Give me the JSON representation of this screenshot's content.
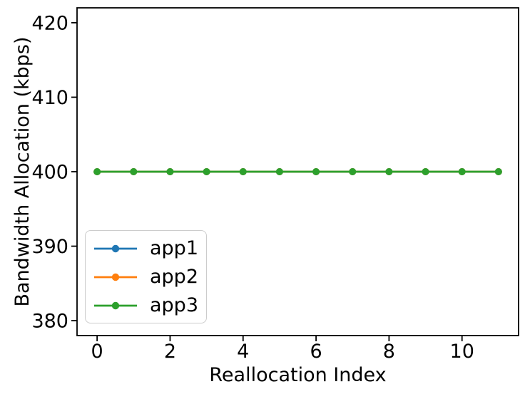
{
  "chart_data": {
    "type": "line",
    "title": "",
    "xlabel": "Reallocation Index",
    "ylabel": "Bandwidth Allocation (kbps)",
    "x": [
      0,
      1,
      2,
      3,
      4,
      5,
      6,
      7,
      8,
      9,
      10,
      11
    ],
    "series": [
      {
        "name": "app1",
        "color": "#1f77b4",
        "marker": "o",
        "values": [
          400,
          400,
          400,
          400,
          400,
          400,
          400,
          400,
          400,
          400,
          400,
          400
        ]
      },
      {
        "name": "app2",
        "color": "#ff7f0e",
        "marker": "o",
        "values": [
          400,
          400,
          400,
          400,
          400,
          400,
          400,
          400,
          400,
          400,
          400,
          400
        ]
      },
      {
        "name": "app3",
        "color": "#2ca02c",
        "marker": "o",
        "values": [
          400,
          400,
          400,
          400,
          400,
          400,
          400,
          400,
          400,
          400,
          400,
          400
        ]
      }
    ],
    "xlim": [
      -0.55,
      11.55
    ],
    "ylim": [
      378,
      422
    ],
    "xticks": [
      0,
      2,
      4,
      6,
      8,
      10
    ],
    "yticks": [
      380,
      390,
      400,
      410,
      420
    ],
    "grid": false,
    "legend": {
      "position": "lower left",
      "entries": [
        "app1",
        "app2",
        "app3"
      ]
    },
    "axis_color": "#000000",
    "background_color": "#ffffff"
  }
}
